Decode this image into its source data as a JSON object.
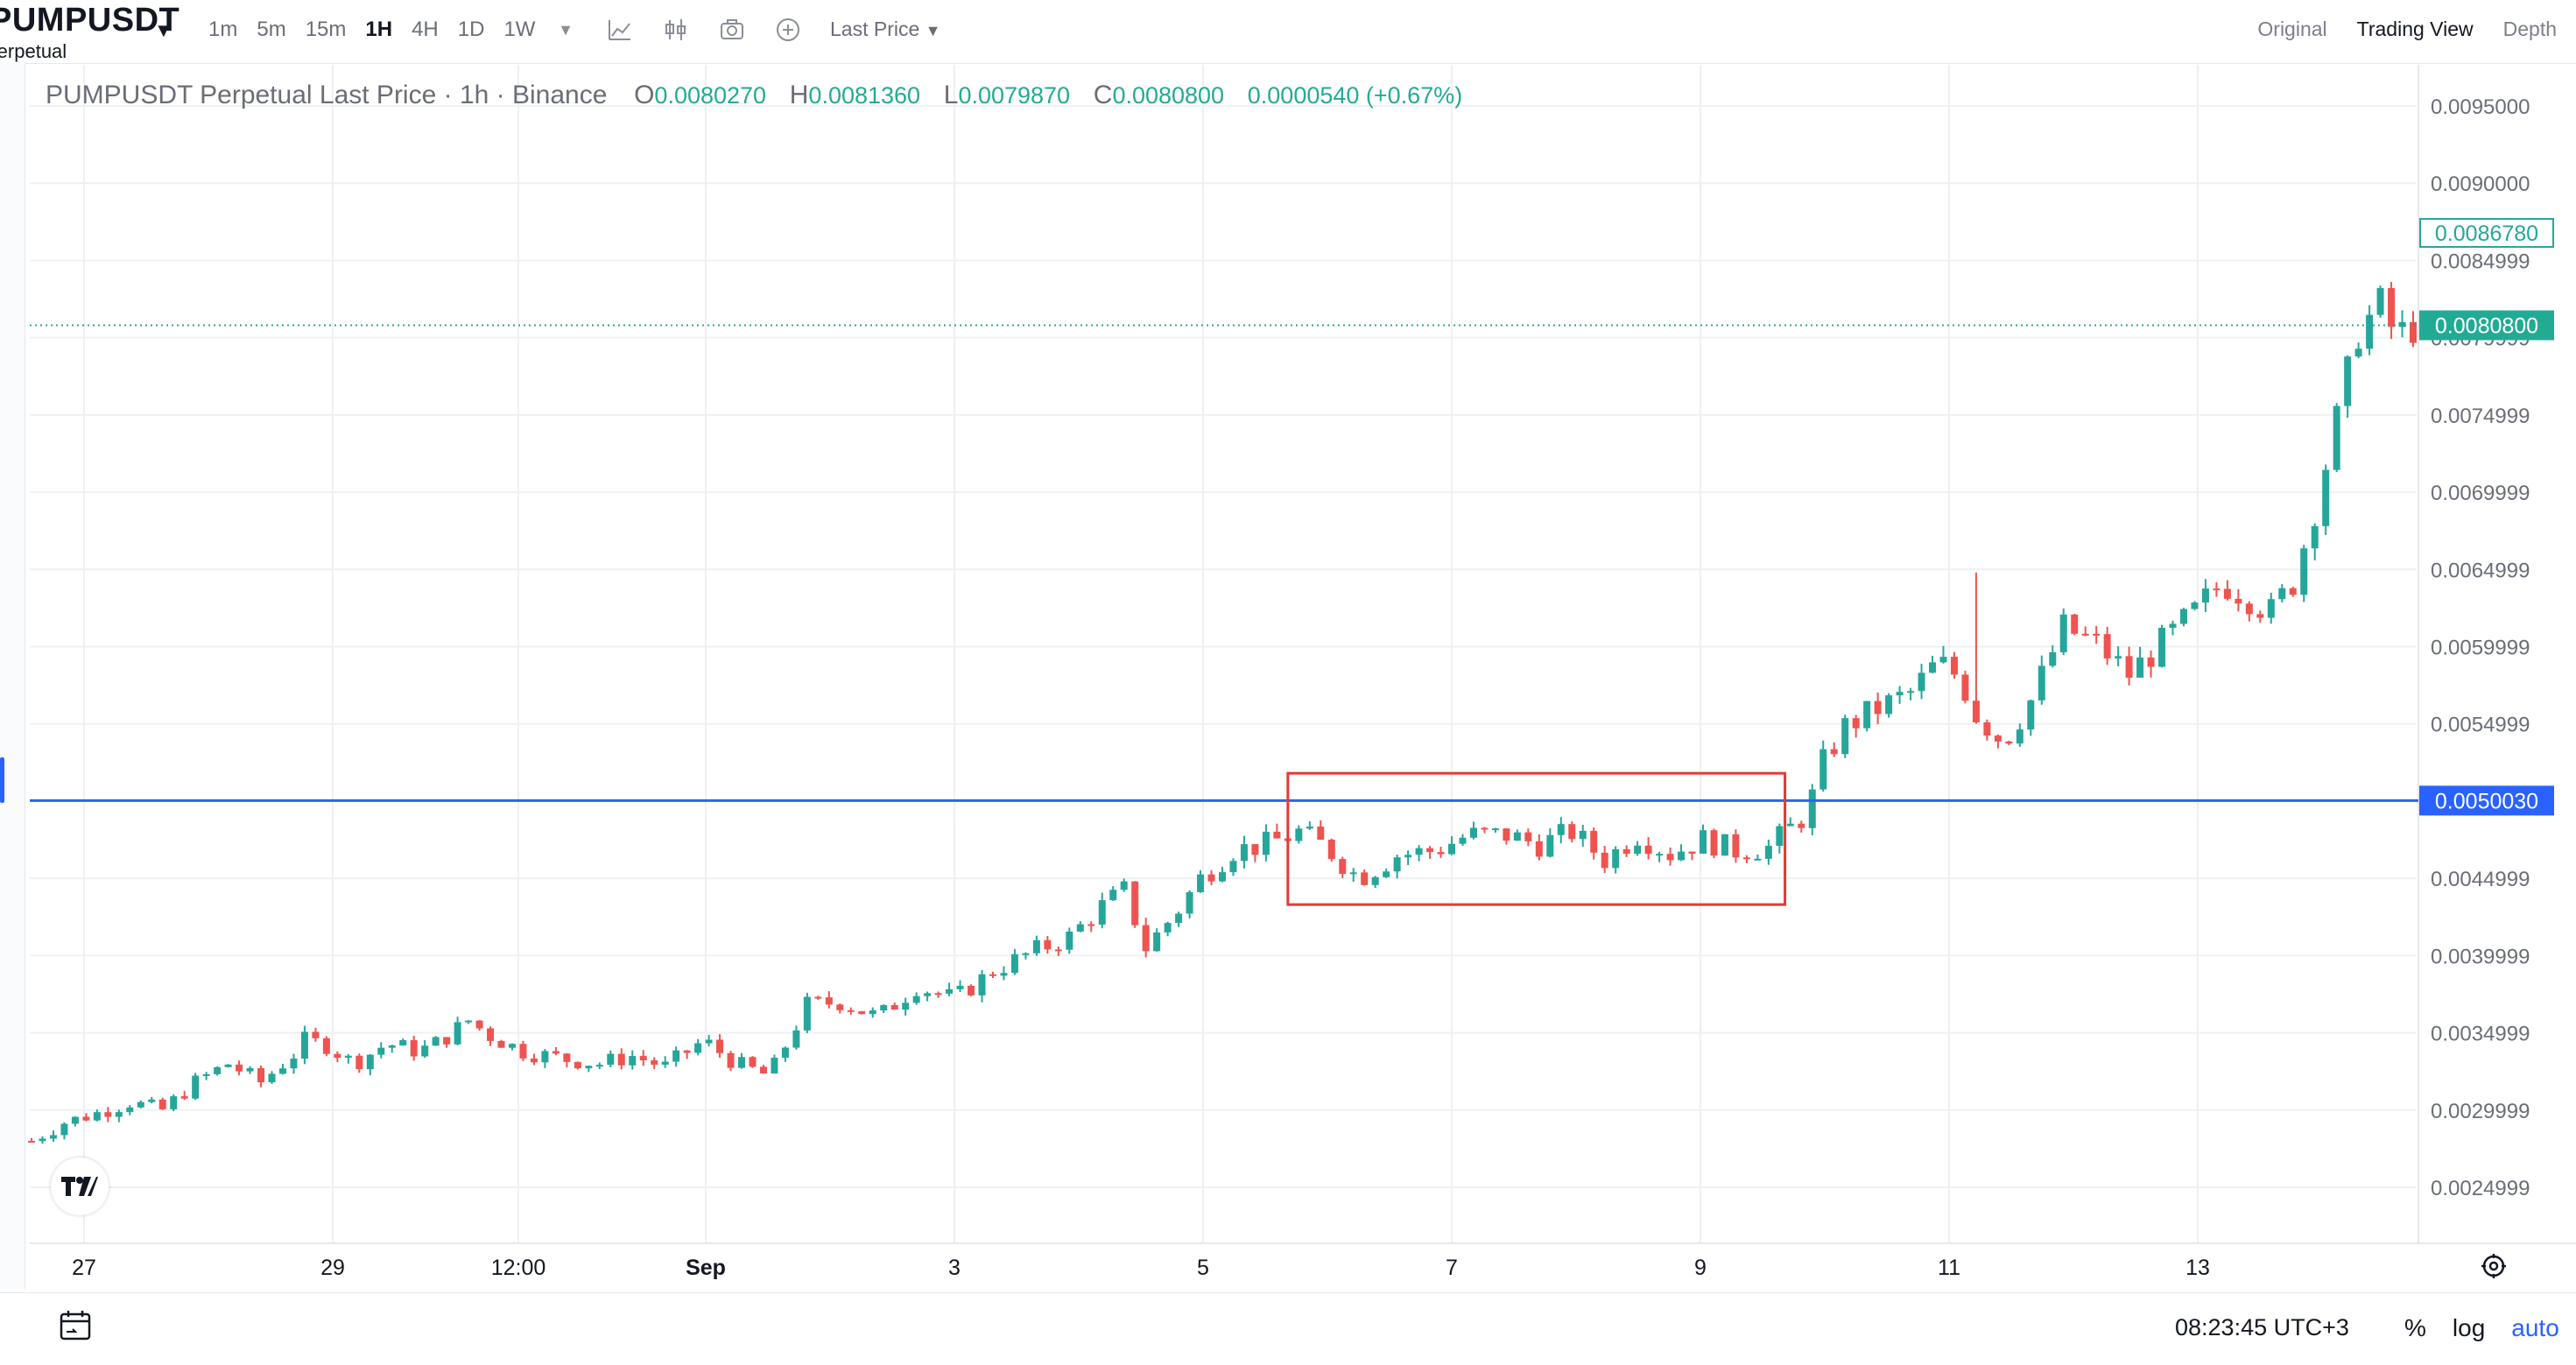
{
  "toolbar": {
    "symbol": "PUMPUSDT",
    "symbol_sub": "Perpetual",
    "intervals": [
      "1m",
      "5m",
      "15m",
      "1H",
      "4H",
      "1D",
      "1W"
    ],
    "active_interval": "1H",
    "price_type": "Last Price",
    "views": [
      "Original",
      "Trading View",
      "Depth"
    ],
    "active_view": "Trading View"
  },
  "legend": {
    "title": "PUMPUSDT Perpetual Last Price · 1h · Binance",
    "o_label": "O",
    "o": "0.0080270",
    "h_label": "H",
    "h": "0.0081360",
    "l_label": "L",
    "l": "0.0079870",
    "c_label": "C",
    "c": "0.0080800",
    "change": "0.0000540 (+0.67%)"
  },
  "bottom": {
    "clock": "08:23:45 UTC+3",
    "percent": "%",
    "log": "log",
    "auto": "auto"
  },
  "chart_data": {
    "type": "candlestick",
    "interval": "1h",
    "y_ticks": [
      "0.0095000",
      "0.0090000",
      "0.0084999",
      "0.0079999",
      "0.0074999",
      "0.0069999",
      "0.0064999",
      "0.0059999",
      "0.0054999",
      "0.0044999",
      "0.0039999",
      "0.0034999",
      "0.0029999",
      "0.0024999"
    ],
    "x_ticks": [
      "27",
      "29",
      "12:00",
      "Sep",
      "3",
      "5",
      "7",
      "9",
      "11",
      "13"
    ],
    "ylim": [
      0.0022,
      0.0098
    ],
    "last_price": "0.0080800",
    "high_marker": "0.0086780",
    "horizontal_line": "0.0050030",
    "colors": {
      "up": "#26a69a",
      "down": "#ef5350",
      "hline": "#2962ff",
      "box": "#e53935",
      "last": "#22ab94"
    },
    "close_path": [
      {
        "t": 0,
        "c": 0.0028
      },
      {
        "t": 12,
        "c": 0.00292
      },
      {
        "t": 24,
        "c": 0.00298
      },
      {
        "t": 36,
        "c": 0.00305
      },
      {
        "t": 48,
        "c": 0.003
      },
      {
        "t": 60,
        "c": 0.00318
      },
      {
        "t": 72,
        "c": 0.0033
      },
      {
        "t": 84,
        "c": 0.00318
      },
      {
        "t": 96,
        "c": 0.00336
      },
      {
        "t": 100,
        "c": 0.00345
      },
      {
        "t": 108,
        "c": 0.00342
      },
      {
        "t": 118,
        "c": 0.0033
      },
      {
        "t": 130,
        "c": 0.00343
      },
      {
        "t": 142,
        "c": 0.00338
      },
      {
        "t": 150,
        "c": 0.00345
      },
      {
        "t": 160,
        "c": 0.00358
      },
      {
        "t": 168,
        "c": 0.00348
      },
      {
        "t": 180,
        "c": 0.00338
      },
      {
        "t": 195,
        "c": 0.00333
      },
      {
        "t": 208,
        "c": 0.0033
      },
      {
        "t": 220,
        "c": 0.00335
      },
      {
        "t": 232,
        "c": 0.00328
      },
      {
        "t": 246,
        "c": 0.00345
      },
      {
        "t": 258,
        "c": 0.0033
      },
      {
        "t": 270,
        "c": 0.00322
      },
      {
        "t": 284,
        "c": 0.00368
      },
      {
        "t": 296,
        "c": 0.0037
      },
      {
        "t": 310,
        "c": 0.0036
      },
      {
        "t": 324,
        "c": 0.0038
      },
      {
        "t": 338,
        "c": 0.00372
      },
      {
        "t": 352,
        "c": 0.0039
      },
      {
        "t": 366,
        "c": 0.00402
      },
      {
        "t": 380,
        "c": 0.00412
      },
      {
        "t": 392,
        "c": 0.00432
      },
      {
        "t": 400,
        "c": 0.00442
      },
      {
        "t": 408,
        "c": 0.00405
      },
      {
        "t": 420,
        "c": 0.0043
      },
      {
        "t": 428,
        "c": 0.0045
      },
      {
        "t": 440,
        "c": 0.00468
      },
      {
        "t": 452,
        "c": 0.00472
      },
      {
        "t": 464,
        "c": 0.0048
      },
      {
        "t": 474,
        "c": 0.0047
      },
      {
        "t": 486,
        "c": 0.0045
      },
      {
        "t": 500,
        "c": 0.00465
      },
      {
        "t": 514,
        "c": 0.00468
      },
      {
        "t": 526,
        "c": 0.00478
      },
      {
        "t": 540,
        "c": 0.00478
      },
      {
        "t": 552,
        "c": 0.00472
      },
      {
        "t": 564,
        "c": 0.0048
      },
      {
        "t": 576,
        "c": 0.00462
      },
      {
        "t": 588,
        "c": 0.00478
      },
      {
        "t": 600,
        "c": 0.00466
      },
      {
        "t": 612,
        "c": 0.00475
      },
      {
        "t": 624,
        "c": 0.00468
      },
      {
        "t": 636,
        "c": 0.0047
      },
      {
        "t": 650,
        "c": 0.00492
      },
      {
        "t": 656,
        "c": 0.00525
      },
      {
        "t": 664,
        "c": 0.00548
      },
      {
        "t": 676,
        "c": 0.0056
      },
      {
        "t": 688,
        "c": 0.0057
      },
      {
        "t": 698,
        "c": 0.0059
      },
      {
        "t": 706,
        "c": 0.0058
      },
      {
        "t": 712,
        "c": 0.00556
      },
      {
        "t": 722,
        "c": 0.00538
      },
      {
        "t": 732,
        "c": 0.00565
      },
      {
        "t": 744,
        "c": 0.00612
      },
      {
        "t": 756,
        "c": 0.00602
      },
      {
        "t": 768,
        "c": 0.00582
      },
      {
        "t": 780,
        "c": 0.00602
      },
      {
        "t": 792,
        "c": 0.00622
      },
      {
        "t": 802,
        "c": 0.00642
      },
      {
        "t": 812,
        "c": 0.00632
      },
      {
        "t": 820,
        "c": 0.00622
      },
      {
        "t": 828,
        "c": 0.00642
      },
      {
        "t": 836,
        "c": 0.0069
      },
      {
        "t": 846,
        "c": 0.0076
      },
      {
        "t": 852,
        "c": 0.00805
      },
      {
        "t": 860,
        "c": 0.0082
      },
      {
        "t": 866,
        "c": 0.008
      },
      {
        "t": 872,
        "c": 0.00808
      }
    ]
  }
}
